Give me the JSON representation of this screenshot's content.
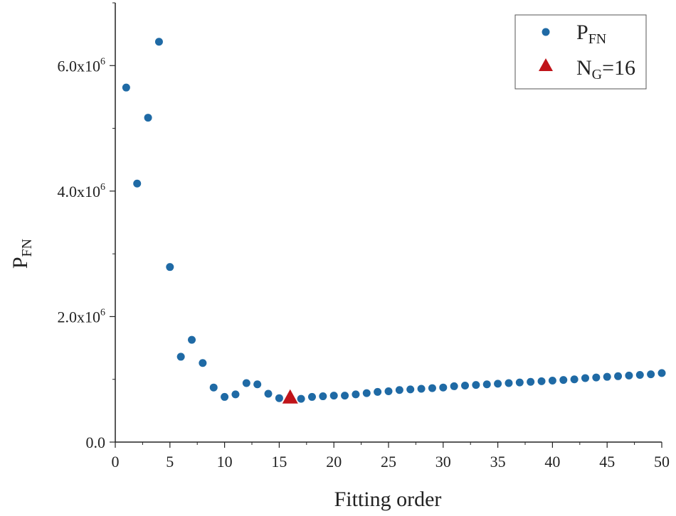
{
  "chart_data": {
    "type": "scatter",
    "title": "",
    "xlabel": "Fitting order",
    "ylabel": {
      "main": "P",
      "sub": "FN"
    },
    "xlim": [
      0,
      50
    ],
    "ylim": [
      0,
      7000000
    ],
    "x_ticks": [
      0,
      5,
      10,
      15,
      20,
      25,
      30,
      35,
      40,
      45,
      50
    ],
    "x_tick_labels": [
      "0",
      "5",
      "10",
      "15",
      "20",
      "25",
      "30",
      "35",
      "40",
      "45",
      "50"
    ],
    "y_ticks": [
      0,
      2000000,
      4000000,
      6000000
    ],
    "y_tick_labels": [
      {
        "mantissa": "0.0",
        "base": "",
        "exp": ""
      },
      {
        "mantissa": "2.0",
        "base": "x10",
        "exp": "6"
      },
      {
        "mantissa": "4.0",
        "base": "x10",
        "exp": "6"
      },
      {
        "mantissa": "6.0",
        "base": "x10",
        "exp": "6"
      }
    ],
    "grid": false,
    "legend_position": "top-right",
    "series": [
      {
        "name": "PFN",
        "legend": {
          "main": "P",
          "sub": "FN",
          "tail": ""
        },
        "marker": "circle",
        "color": "#1f6aa5",
        "x": [
          1,
          2,
          3,
          4,
          5,
          6,
          7,
          8,
          9,
          10,
          11,
          12,
          13,
          14,
          15,
          17,
          18,
          19,
          20,
          21,
          22,
          23,
          24,
          25,
          26,
          27,
          28,
          29,
          30,
          31,
          32,
          33,
          34,
          35,
          36,
          37,
          38,
          39,
          40,
          41,
          42,
          43,
          44,
          45,
          46,
          47,
          48,
          49,
          50
        ],
        "y": [
          5650000,
          4120000,
          5170000,
          6380000,
          2790000,
          1360000,
          1630000,
          1260000,
          870000,
          720000,
          760000,
          940000,
          920000,
          770000,
          700000,
          690000,
          720000,
          730000,
          740000,
          740000,
          760000,
          780000,
          800000,
          810000,
          830000,
          840000,
          850000,
          860000,
          870000,
          890000,
          900000,
          910000,
          920000,
          930000,
          940000,
          950000,
          960000,
          970000,
          980000,
          990000,
          1000000,
          1020000,
          1030000,
          1040000,
          1050000,
          1060000,
          1070000,
          1080000,
          1100000
        ]
      },
      {
        "name": "NG=16",
        "legend": {
          "main": "N",
          "sub": "G",
          "tail": "=16"
        },
        "marker": "triangle",
        "color": "#c0141a",
        "x": [
          16
        ],
        "y": [
          700000
        ]
      }
    ]
  }
}
